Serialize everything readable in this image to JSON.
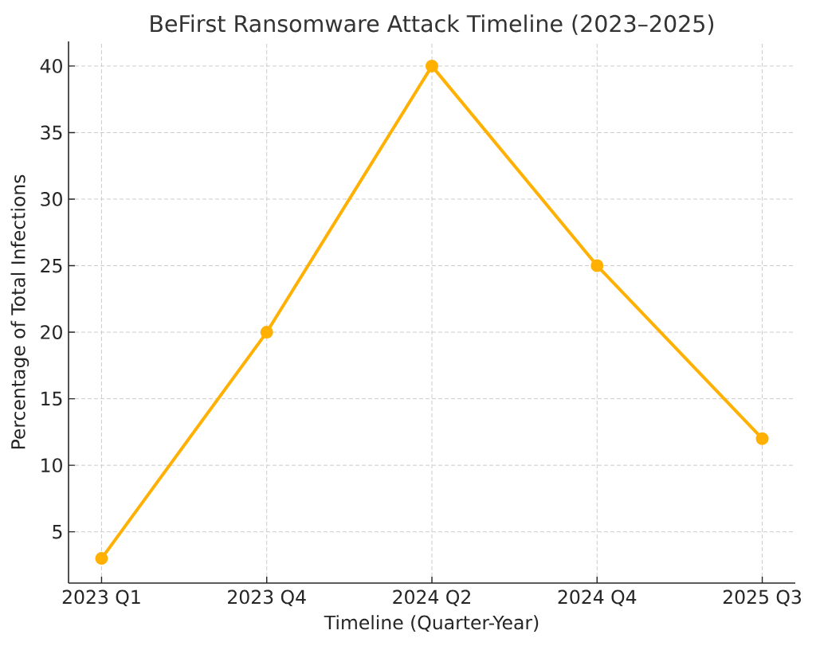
{
  "chart_data": {
    "type": "line",
    "title": "BeFirst Ransomware Attack Timeline (2023–2025)",
    "xlabel": "Timeline (Quarter-Year)",
    "ylabel": "Percentage of Total Infections",
    "categories": [
      "2023 Q1",
      "2023 Q4",
      "2024 Q2",
      "2024 Q4",
      "2025 Q3"
    ],
    "series": [
      {
        "color": "#ffb000",
        "values": [
          3,
          20,
          40,
          25,
          12
        ]
      }
    ],
    "ylim": [
      1.15,
      41.85
    ],
    "yticks": [
      5,
      10,
      15,
      20,
      25,
      30,
      35,
      40
    ],
    "grid": true,
    "marker": "circle",
    "line_style": "solid"
  }
}
